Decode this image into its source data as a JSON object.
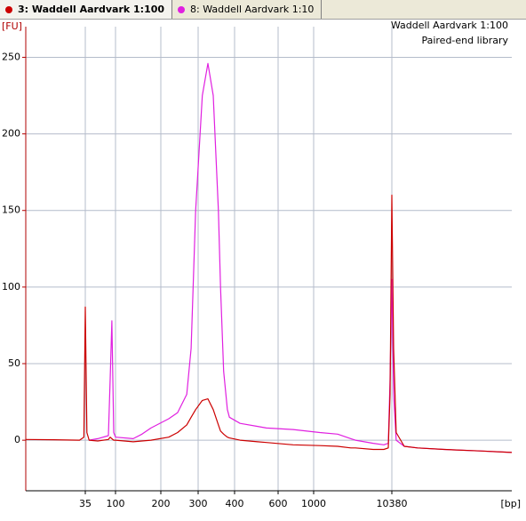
{
  "chart_data": {
    "type": "line",
    "annotations": [
      "Waddell Aardvark 1:100",
      "Paired-end library"
    ],
    "y_label": "[FU]",
    "x_label": "[bp]",
    "x": [
      10,
      18,
      31,
      34,
      35,
      37,
      40,
      54,
      78,
      83,
      88,
      94,
      100,
      131,
      150,
      172,
      218,
      240,
      265,
      278,
      292,
      310,
      324,
      338,
      352,
      358,
      367,
      378,
      384,
      421,
      496,
      538,
      745,
      1205,
      2050,
      3050,
      3490,
      5940,
      8170,
      9330,
      9840,
      10380,
      10740,
      11270,
      13120,
      16870,
      27900,
      54700,
      100000
    ],
    "series": [
      {
        "name": "3: Waddell Aardvark 1:100",
        "color": "#cc0000",
        "values": [
          0.5,
          0.3,
          0,
          2,
          87,
          5,
          0,
          -0.5,
          0.5,
          2,
          1,
          0,
          0,
          -1,
          -0.5,
          0,
          2,
          5,
          10,
          15,
          20,
          26,
          27,
          20,
          10,
          6,
          4,
          2,
          1.5,
          0,
          -1,
          -1.5,
          -3,
          -3.5,
          -4,
          -5,
          -5,
          -6,
          -6,
          -5,
          30,
          160,
          60,
          5,
          -4,
          -5,
          -6,
          -7,
          -8
        ]
      },
      {
        "name": "8: Waddell Aardvark 1:10",
        "color": "#e020e0",
        "values": [
          null,
          null,
          null,
          null,
          null,
          null,
          0,
          1,
          3,
          40,
          78,
          5,
          2,
          1,
          4,
          8,
          14,
          18,
          30,
          60,
          150,
          225,
          246,
          225,
          150,
          100,
          45,
          20,
          15,
          11,
          9,
          8,
          7,
          5,
          4,
          1,
          0,
          -2,
          -3,
          -2,
          40,
          105,
          30,
          0,
          -4,
          -5,
          -6,
          -7,
          -8
        ]
      }
    ],
    "xlim": [
      10,
      100000
    ],
    "xticks": [
      35,
      100,
      200,
      300,
      400,
      600,
      1000,
      10380
    ],
    "ylim": [
      -33,
      270
    ],
    "yticks": [
      0,
      50,
      100,
      150,
      200,
      250
    ],
    "grid": true
  }
}
